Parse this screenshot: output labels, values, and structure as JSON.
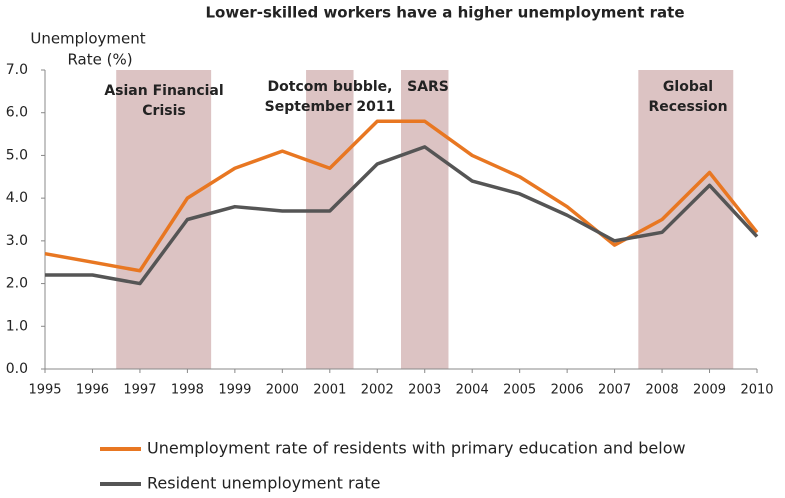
{
  "chart_data": {
    "type": "line",
    "title": "Lower-skilled workers have a higher unemployment rate",
    "y_label": [
      "Unemployment",
      "Rate (%)"
    ],
    "x": [
      1995,
      1996,
      1997,
      1998,
      1999,
      2000,
      2001,
      2002,
      2003,
      2004,
      2005,
      2006,
      2007,
      2008,
      2009,
      2010
    ],
    "series": [
      {
        "name": "Unemployment rate of residents with primary education and below",
        "color": "#e87722",
        "values": [
          2.7,
          2.5,
          2.3,
          4.0,
          4.7,
          5.1,
          4.7,
          5.8,
          5.8,
          5.0,
          4.5,
          3.8,
          2.9,
          3.5,
          4.6,
          3.2
        ]
      },
      {
        "name": "Resident unemployment rate",
        "color": "#555555",
        "values": [
          2.2,
          2.2,
          2.0,
          3.5,
          3.8,
          3.7,
          3.7,
          4.8,
          5.2,
          4.4,
          4.1,
          3.6,
          3.0,
          3.2,
          4.3,
          3.1
        ]
      }
    ],
    "bands": [
      {
        "label": [
          "Asian Financial",
          "Crisis"
        ],
        "start": 1996.5,
        "end": 1998.5
      },
      {
        "label": [
          "Dotcom bubble,",
          "September 2011"
        ],
        "start": 2000.5,
        "end": 2001.5
      },
      {
        "label": [
          "SARS"
        ],
        "start": 2002.5,
        "end": 2003.5
      },
      {
        "label": [
          "Global",
          "Recession"
        ],
        "start": 2007.5,
        "end": 2009.5
      }
    ],
    "band_color": "#dcc3c3",
    "xlim": [
      1995,
      2010
    ],
    "xticks": [
      1995,
      1996,
      1997,
      1998,
      1999,
      2000,
      2001,
      2002,
      2003,
      2004,
      2005,
      2006,
      2007,
      2008,
      2009,
      2010
    ],
    "ylim": [
      0,
      7
    ],
    "yticks": [
      {
        "value": 0,
        "label": "0.0"
      },
      {
        "value": 1,
        "label": "1.0"
      },
      {
        "value": 2,
        "label": "2.0"
      },
      {
        "value": 3,
        "label": "3.0"
      },
      {
        "value": 4,
        "label": "4.0"
      },
      {
        "value": 5,
        "label": "5.0"
      },
      {
        "value": 6,
        "label": "6.0"
      },
      {
        "value": 7,
        "label": "7.0"
      }
    ],
    "legend": "bottom"
  }
}
